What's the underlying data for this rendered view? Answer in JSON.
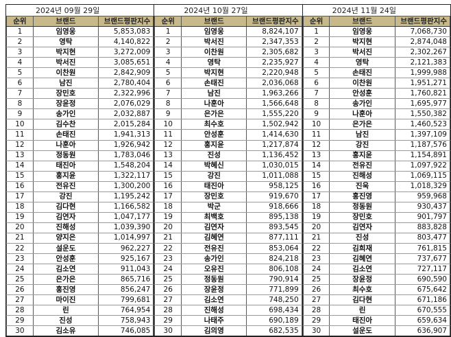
{
  "columns": {
    "rank": "순위",
    "brand": "브랜드",
    "score": "브랜드평판지수"
  },
  "tables": [
    {
      "date": "2024년 09월 29일",
      "rows": [
        {
          "rank": "1",
          "name": "임영웅",
          "score": "5,853,083"
        },
        {
          "rank": "2",
          "name": "영탁",
          "score": "4,140,822"
        },
        {
          "rank": "3",
          "name": "박지현",
          "score": "3,272,009"
        },
        {
          "rank": "4",
          "name": "박서진",
          "score": "3,085,651"
        },
        {
          "rank": "5",
          "name": "이찬원",
          "score": "2,842,909"
        },
        {
          "rank": "6",
          "name": "남진",
          "score": "2,780,404"
        },
        {
          "rank": "7",
          "name": "장민호",
          "score": "2,322,996"
        },
        {
          "rank": "8",
          "name": "장윤정",
          "score": "2,076,029"
        },
        {
          "rank": "9",
          "name": "송가인",
          "score": "2,032,887"
        },
        {
          "rank": "10",
          "name": "김수찬",
          "score": "2,015,284"
        },
        {
          "rank": "11",
          "name": "손태진",
          "score": "1,941,313"
        },
        {
          "rank": "12",
          "name": "나훈아",
          "score": "1,926,942"
        },
        {
          "rank": "13",
          "name": "정동원",
          "score": "1,783,046"
        },
        {
          "rank": "14",
          "name": "태진아",
          "score": "1,548,204"
        },
        {
          "rank": "15",
          "name": "홍지윤",
          "score": "1,322,117"
        },
        {
          "rank": "16",
          "name": "전유진",
          "score": "1,300,200"
        },
        {
          "rank": "17",
          "name": "강진",
          "score": "1,195,242"
        },
        {
          "rank": "18",
          "name": "김다현",
          "score": "1,166,582"
        },
        {
          "rank": "19",
          "name": "김연자",
          "score": "1,047,177"
        },
        {
          "rank": "20",
          "name": "진해성",
          "score": "1,039,390"
        },
        {
          "rank": "21",
          "name": "양지은",
          "score": "1,014,997"
        },
        {
          "rank": "22",
          "name": "설운도",
          "score": "962,227"
        },
        {
          "rank": "23",
          "name": "안성훈",
          "score": "925,167"
        },
        {
          "rank": "24",
          "name": "김소연",
          "score": "911,043"
        },
        {
          "rank": "25",
          "name": "은가은",
          "score": "865,716"
        },
        {
          "rank": "26",
          "name": "홍진영",
          "score": "856,247"
        },
        {
          "rank": "27",
          "name": "마이진",
          "score": "799,681"
        },
        {
          "rank": "28",
          "name": "린",
          "score": "764,954"
        },
        {
          "rank": "29",
          "name": "진성",
          "score": "758,943"
        },
        {
          "rank": "30",
          "name": "김소유",
          "score": "746,085"
        }
      ]
    },
    {
      "date": "2024년 10월 27일",
      "rows": [
        {
          "rank": "1",
          "name": "임영웅",
          "score": "8,824,107"
        },
        {
          "rank": "2",
          "name": "박서진",
          "score": "2,347,353"
        },
        {
          "rank": "3",
          "name": "이찬원",
          "score": "2,305,682"
        },
        {
          "rank": "4",
          "name": "영탁",
          "score": "2,235,927"
        },
        {
          "rank": "5",
          "name": "박지현",
          "score": "2,220,948"
        },
        {
          "rank": "6",
          "name": "손태진",
          "score": "2,036,068"
        },
        {
          "rank": "7",
          "name": "남진",
          "score": "1,963,266"
        },
        {
          "rank": "8",
          "name": "나훈아",
          "score": "1,566,648"
        },
        {
          "rank": "9",
          "name": "은가은",
          "score": "1,555,220"
        },
        {
          "rank": "10",
          "name": "최수호",
          "score": "1,502,942"
        },
        {
          "rank": "11",
          "name": "안성훈",
          "score": "1,414,630"
        },
        {
          "rank": "12",
          "name": "홍지윤",
          "score": "1,217,874"
        },
        {
          "rank": "13",
          "name": "진성",
          "score": "1,136,452"
        },
        {
          "rank": "14",
          "name": "박혜신",
          "score": "1,030,015"
        },
        {
          "rank": "15",
          "name": "강진",
          "score": "1,011,088"
        },
        {
          "rank": "16",
          "name": "태진아",
          "score": "958,125"
        },
        {
          "rank": "17",
          "name": "장민호",
          "score": "919,670"
        },
        {
          "rank": "18",
          "name": "박군",
          "score": "918,666"
        },
        {
          "rank": "19",
          "name": "최백호",
          "score": "895,138"
        },
        {
          "rank": "20",
          "name": "김연자",
          "score": "893,545"
        },
        {
          "rank": "21",
          "name": "김혜연",
          "score": "877,111"
        },
        {
          "rank": "22",
          "name": "전유진",
          "score": "853,064"
        },
        {
          "rank": "23",
          "name": "송가인",
          "score": "824,218"
        },
        {
          "rank": "24",
          "name": "오유진",
          "score": "806,108"
        },
        {
          "rank": "25",
          "name": "정동원",
          "score": "790,914"
        },
        {
          "rank": "26",
          "name": "장윤정",
          "score": "771,899"
        },
        {
          "rank": "27",
          "name": "김소연",
          "score": "748,250"
        },
        {
          "rank": "28",
          "name": "진해성",
          "score": "698,434"
        },
        {
          "rank": "29",
          "name": "나태주",
          "score": "690,189"
        },
        {
          "rank": "30",
          "name": "김의영",
          "score": "682,535"
        }
      ]
    },
    {
      "date": "2024년 11월 24일",
      "rows": [
        {
          "rank": "1",
          "name": "임영웅",
          "score": "7,068,730"
        },
        {
          "rank": "2",
          "name": "박지현",
          "score": "2,874,048"
        },
        {
          "rank": "3",
          "name": "박서진",
          "score": "2,302,267"
        },
        {
          "rank": "4",
          "name": "영탁",
          "score": "2,121,383"
        },
        {
          "rank": "5",
          "name": "손태진",
          "score": "1,999,988"
        },
        {
          "rank": "6",
          "name": "이찬원",
          "score": "1,951,271"
        },
        {
          "rank": "7",
          "name": "안성훈",
          "score": "1,760,821"
        },
        {
          "rank": "8",
          "name": "송가인",
          "score": "1,695,977"
        },
        {
          "rank": "9",
          "name": "나훈아",
          "score": "1,550,382"
        },
        {
          "rank": "10",
          "name": "은가은",
          "score": "1,460,523"
        },
        {
          "rank": "11",
          "name": "남진",
          "score": "1,397,109"
        },
        {
          "rank": "12",
          "name": "강진",
          "score": "1,187,576"
        },
        {
          "rank": "13",
          "name": "홍지윤",
          "score": "1,154,891"
        },
        {
          "rank": "14",
          "name": "전유진",
          "score": "1,097,922"
        },
        {
          "rank": "15",
          "name": "진해성",
          "score": "1,069,115"
        },
        {
          "rank": "16",
          "name": "진욱",
          "score": "1,018,329"
        },
        {
          "rank": "17",
          "name": "홍진영",
          "score": "959,968"
        },
        {
          "rank": "18",
          "name": "정동원",
          "score": "930,437"
        },
        {
          "rank": "19",
          "name": "장민호",
          "score": "901,797"
        },
        {
          "rank": "20",
          "name": "김연자",
          "score": "883,828"
        },
        {
          "rank": "21",
          "name": "진성",
          "score": "803,477"
        },
        {
          "rank": "22",
          "name": "김희재",
          "score": "761,815"
        },
        {
          "rank": "23",
          "name": "김혜연",
          "score": "737,677"
        },
        {
          "rank": "24",
          "name": "김소연",
          "score": "727,117"
        },
        {
          "rank": "25",
          "name": "장윤정",
          "score": "690,590"
        },
        {
          "rank": "26",
          "name": "최수호",
          "score": "675,642"
        },
        {
          "rank": "27",
          "name": "김다현",
          "score": "671,186"
        },
        {
          "rank": "28",
          "name": "린",
          "score": "670,555"
        },
        {
          "rank": "29",
          "name": "태진아",
          "score": "659,634"
        },
        {
          "rank": "30",
          "name": "설운도",
          "score": "636,907"
        }
      ]
    }
  ]
}
